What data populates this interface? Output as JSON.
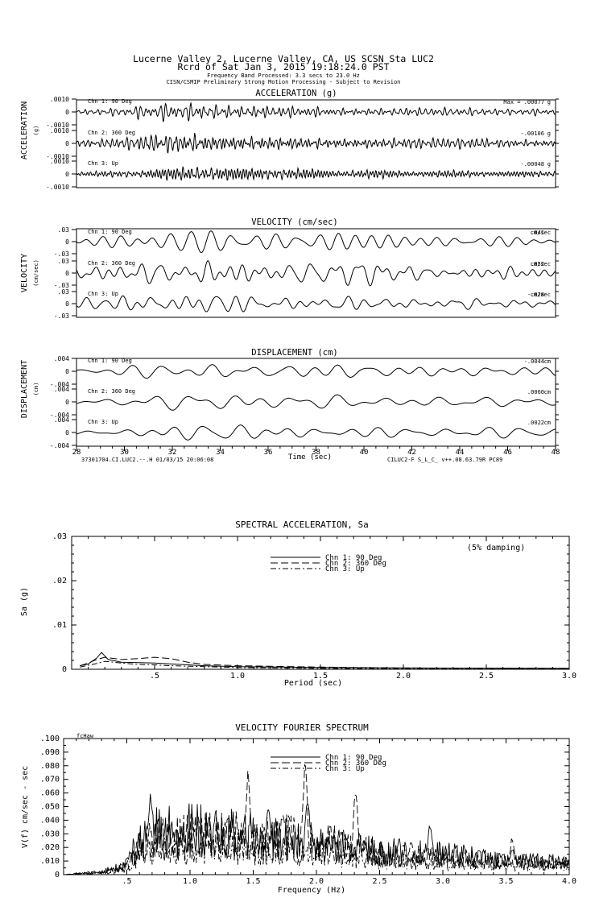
{
  "header": {
    "line1": "Lucerne Valley 2, Lucerne Valley, CA, US    SCSN Sta LUC2",
    "line2": "Rcrd of Sat Jan  3, 2015 19:18:24.0 PST",
    "line3": "Frequency Band Processed: 3.3 secs to 23.0 Hz",
    "line4": "CISN/CSMIP Preliminary Strong Motion Processing - Subject to Revision"
  },
  "time_axis": {
    "xlim": [
      28,
      48
    ],
    "ticks": [
      28,
      30,
      32,
      34,
      36,
      38,
      40,
      42,
      44,
      46,
      48
    ],
    "xlabel": "Time (sec)",
    "footer_left": "37301704.CI.LUC2.--.H 01/03/15 20:06:08",
    "footer_right": "CILUC2-F  S_L_C_  v++.08.63.79R PC89"
  },
  "chart_data": [
    {
      "type": "line",
      "title": "ACCELERATION (g)",
      "ylabel": "ACCELERATION",
      "ylabel_units": "(g)",
      "ylim": [
        -0.001,
        0.001
      ],
      "tick_labels": [
        ".0010",
        "0",
        "-.0010"
      ],
      "trace_style": {
        "frequency_hz": 6.0,
        "envelope": [
          0.3,
          0.35,
          0.45,
          0.7,
          0.85,
          0.9,
          0.9,
          0.8,
          0.75,
          0.65,
          0.6,
          0.5,
          0.5,
          0.45,
          0.45,
          0.4,
          0.4,
          0.4,
          0.35,
          0.35,
          0.35
        ]
      },
      "series": [
        {
          "name": "Chn 1: 90 Deg",
          "peak": 0.00077,
          "peak_label": "Max =   .00077",
          "units": "g",
          "seed": 11
        },
        {
          "name": "Chn 2: 360 Deg",
          "peak": -0.00106,
          "peak_label": "-.00106",
          "units": "g",
          "seed": 23
        },
        {
          "name": "Chn 3: Up",
          "peak": -0.00048,
          "peak_label": "-.00048",
          "units": "g",
          "seed": 37
        }
      ]
    },
    {
      "type": "line",
      "title": "VELOCITY (cm/sec)",
      "ylabel": "VELOCITY",
      "ylabel_units": "(cm/sec)",
      "ylim": [
        -0.03,
        0.03
      ],
      "tick_labels": [
        ".03",
        "0",
        "-.03"
      ],
      "trace_style": {
        "frequency_hz": 1.3,
        "envelope": [
          0.35,
          0.45,
          0.6,
          0.85,
          0.95,
          0.85,
          0.75,
          0.7,
          0.65,
          0.65,
          0.6,
          0.6,
          0.55,
          0.55,
          0.5,
          0.5,
          0.5,
          0.45,
          0.45,
          0.45,
          0.4
        ]
      },
      "series": [
        {
          "name": "Chn 1: 90 Deg",
          "peak": 0.041,
          "peak_label": ".041",
          "units": "cm/sec",
          "seed": 51
        },
        {
          "name": "Chn 2: 360 Deg",
          "peak": 0.052,
          "peak_label": ".052",
          "units": "cm/sec",
          "seed": 63
        },
        {
          "name": "Chn 3: Up",
          "peak": -0.028,
          "peak_label": "-.028",
          "units": "cm/sec",
          "seed": 77
        }
      ]
    },
    {
      "type": "line",
      "title": "DISPLACEMENT (cm)",
      "ylabel": "DISPLACEMENT",
      "ylabel_units": "(cm)",
      "ylim": [
        -0.004,
        0.004
      ],
      "tick_labels": [
        ".004",
        "0",
        "-.004"
      ],
      "trace_style": {
        "frequency_hz": 0.7,
        "envelope": [
          0.3,
          0.35,
          0.45,
          0.65,
          0.8,
          0.9,
          0.9,
          0.85,
          0.8,
          0.75,
          0.7,
          0.65,
          0.6,
          0.6,
          0.55,
          0.55,
          0.5,
          0.5,
          0.45,
          0.45,
          0.45
        ]
      },
      "series": [
        {
          "name": "Chn 1: 90 Deg",
          "peak": -0.0044,
          "peak_label": "-.0044",
          "units": "cm",
          "seed": 89
        },
        {
          "name": "Chn 2: 360 Deg",
          "peak": 0.006,
          "peak_label": ".0060",
          "units": "cm",
          "seed": 97
        },
        {
          "name": "Chn 3: Up",
          "peak": 0.0022,
          "peak_label": ".0022",
          "units": "cm",
          "seed": 101
        }
      ]
    },
    {
      "type": "line",
      "title": "SPECTRAL ACCELERATION, Sa",
      "xlabel": "Period (sec)",
      "ylabel": "Sa (g)",
      "xlim": [
        0,
        3.0
      ],
      "ylim": [
        0,
        0.03
      ],
      "x_ticks": [
        ".5",
        "1.0",
        "1.5",
        "2.0",
        "2.5",
        "3.0"
      ],
      "y_ticks": [
        ".03",
        ".02",
        ".01",
        "0"
      ],
      "annotation": "(5% damping)",
      "legend_position": "top-center",
      "series": [
        {
          "name": "Chn 1: 90 Deg",
          "dash": "",
          "x": [
            0.05,
            0.1,
            0.15,
            0.18,
            0.22,
            0.3,
            0.4,
            0.5,
            0.6,
            0.8,
            1.0,
            1.5,
            2.0,
            3.0
          ],
          "y": [
            0.0008,
            0.0012,
            0.0025,
            0.0038,
            0.0022,
            0.0016,
            0.0015,
            0.0014,
            0.0012,
            0.0008,
            0.0006,
            0.0004,
            0.0003,
            0.0002
          ]
        },
        {
          "name": "Chn 2: 360 Deg",
          "dash": "9,4",
          "x": [
            0.05,
            0.1,
            0.15,
            0.2,
            0.3,
            0.4,
            0.5,
            0.6,
            0.7,
            0.8,
            1.0,
            1.5,
            2.0,
            3.0
          ],
          "y": [
            0.0008,
            0.0014,
            0.0022,
            0.0027,
            0.0022,
            0.0024,
            0.0027,
            0.0024,
            0.0016,
            0.0011,
            0.0008,
            0.0005,
            0.0003,
            0.0002
          ]
        },
        {
          "name": "Chn 3: Up",
          "dash": "7,3,2,3",
          "x": [
            0.05,
            0.1,
            0.15,
            0.2,
            0.3,
            0.4,
            0.5,
            0.6,
            0.8,
            1.0,
            1.5,
            2.0,
            3.0
          ],
          "y": [
            0.0005,
            0.0009,
            0.0013,
            0.0018,
            0.0014,
            0.0011,
            0.001,
            0.0008,
            0.0006,
            0.0004,
            0.0002,
            0.0002,
            0.0001
          ]
        }
      ]
    },
    {
      "type": "line",
      "title": "VELOCITY FOURIER SPECTRUM",
      "corner_label": "fcHaw",
      "xlabel": "Frequency (Hz)",
      "ylabel": "V(f)  cm/sec - sec",
      "xlim": [
        0,
        4.0
      ],
      "ylim": [
        0,
        0.1
      ],
      "x_ticks": [
        ".5",
        "1.0",
        "1.5",
        "2.0",
        "2.5",
        "3.0",
        "3.5",
        "4.0"
      ],
      "y_ticks": [
        ".100",
        ".090",
        ".080",
        ".070",
        ".060",
        ".050",
        ".040",
        ".030",
        ".020",
        ".010",
        "0"
      ],
      "legend_position": "top-center",
      "series": [
        {
          "name": "Chn 1: 90 Deg",
          "dash": "",
          "seed": 5,
          "base": [
            [
              0,
              0
            ],
            [
              0.3,
              0.002
            ],
            [
              0.5,
              0.008
            ],
            [
              0.6,
              0.025
            ],
            [
              0.7,
              0.03
            ],
            [
              1.0,
              0.032
            ],
            [
              1.5,
              0.028
            ],
            [
              2.0,
              0.022
            ],
            [
              2.5,
              0.017
            ],
            [
              3.0,
              0.015
            ],
            [
              3.5,
              0.01
            ],
            [
              4.0,
              0.009
            ]
          ],
          "peaks": [
            [
              0.69,
              0.062
            ],
            [
              1.2,
              0.048
            ],
            [
              1.62,
              0.051
            ],
            [
              1.93,
              0.06
            ],
            [
              2.9,
              0.04
            ],
            [
              3.55,
              0.02
            ]
          ]
        },
        {
          "name": "Chn 2: 360 Deg",
          "dash": "10,4",
          "seed": 13,
          "base": [
            [
              0,
              0
            ],
            [
              0.3,
              0.002
            ],
            [
              0.5,
              0.006
            ],
            [
              0.6,
              0.02
            ],
            [
              0.7,
              0.025
            ],
            [
              1.0,
              0.027
            ],
            [
              1.5,
              0.03
            ],
            [
              2.0,
              0.025
            ],
            [
              2.5,
              0.015
            ],
            [
              3.0,
              0.012
            ],
            [
              3.5,
              0.01
            ],
            [
              4.0,
              0.008
            ]
          ],
          "peaks": [
            [
              1.46,
              0.078
            ],
            [
              1.91,
              0.083
            ],
            [
              2.31,
              0.063
            ],
            [
              2.75,
              0.025
            ],
            [
              3.55,
              0.028
            ]
          ]
        },
        {
          "name": "Chn 3: Up",
          "dash": "7,3,2,3",
          "seed": 29,
          "base": [
            [
              0,
              0
            ],
            [
              0.3,
              0.001
            ],
            [
              0.5,
              0.004
            ],
            [
              0.6,
              0.014
            ],
            [
              0.8,
              0.017
            ],
            [
              1.0,
              0.018
            ],
            [
              1.5,
              0.018
            ],
            [
              2.0,
              0.016
            ],
            [
              2.5,
              0.01
            ],
            [
              3.0,
              0.008
            ],
            [
              3.5,
              0.007
            ],
            [
              4.0,
              0.006
            ]
          ],
          "peaks": [
            [
              1.0,
              0.025
            ],
            [
              1.8,
              0.023
            ],
            [
              3.0,
              0.012
            ]
          ]
        }
      ]
    }
  ]
}
